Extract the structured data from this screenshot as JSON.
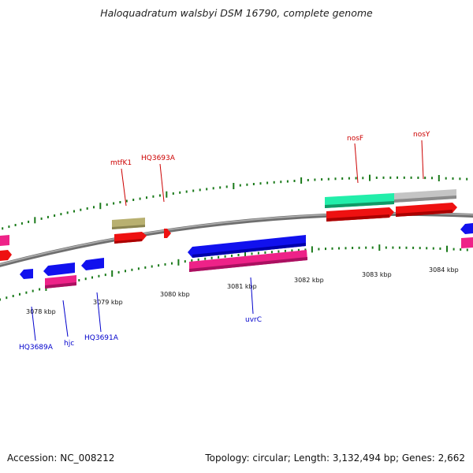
{
  "title": "Haloquadratum walsbyi DSM 16790, complete genome",
  "footer": {
    "accession": "Accession: NC_008212",
    "summary": "Topology: circular; Length: 3,132,494 bp; Genes: 2,662"
  },
  "colors": {
    "backbone": "#808080",
    "tick": "#1a7a1a",
    "top_label": "#cc0000",
    "bottom_label": "#0000cc",
    "blue_gene": "#1111ee",
    "pink_gene": "#ee2288",
    "red_gene": "#ee1111",
    "khaki_gene": "#b8b070",
    "teal_gene": "#22eeaa",
    "grey_gene": "#bbbbbb"
  },
  "scale_labels": [
    "3078 kbp",
    "3079 kbp",
    "3080 kbp",
    "3081 kbp",
    "3082 kbp",
    "3083 kbp",
    "3084 kbp"
  ],
  "gene_labels_top": [
    "mtfK1",
    "HQ3693A",
    "nosF",
    "nosY"
  ],
  "gene_labels_bottom": [
    "HQ3689A",
    "hjc",
    "HQ3691A",
    "uvrC"
  ]
}
